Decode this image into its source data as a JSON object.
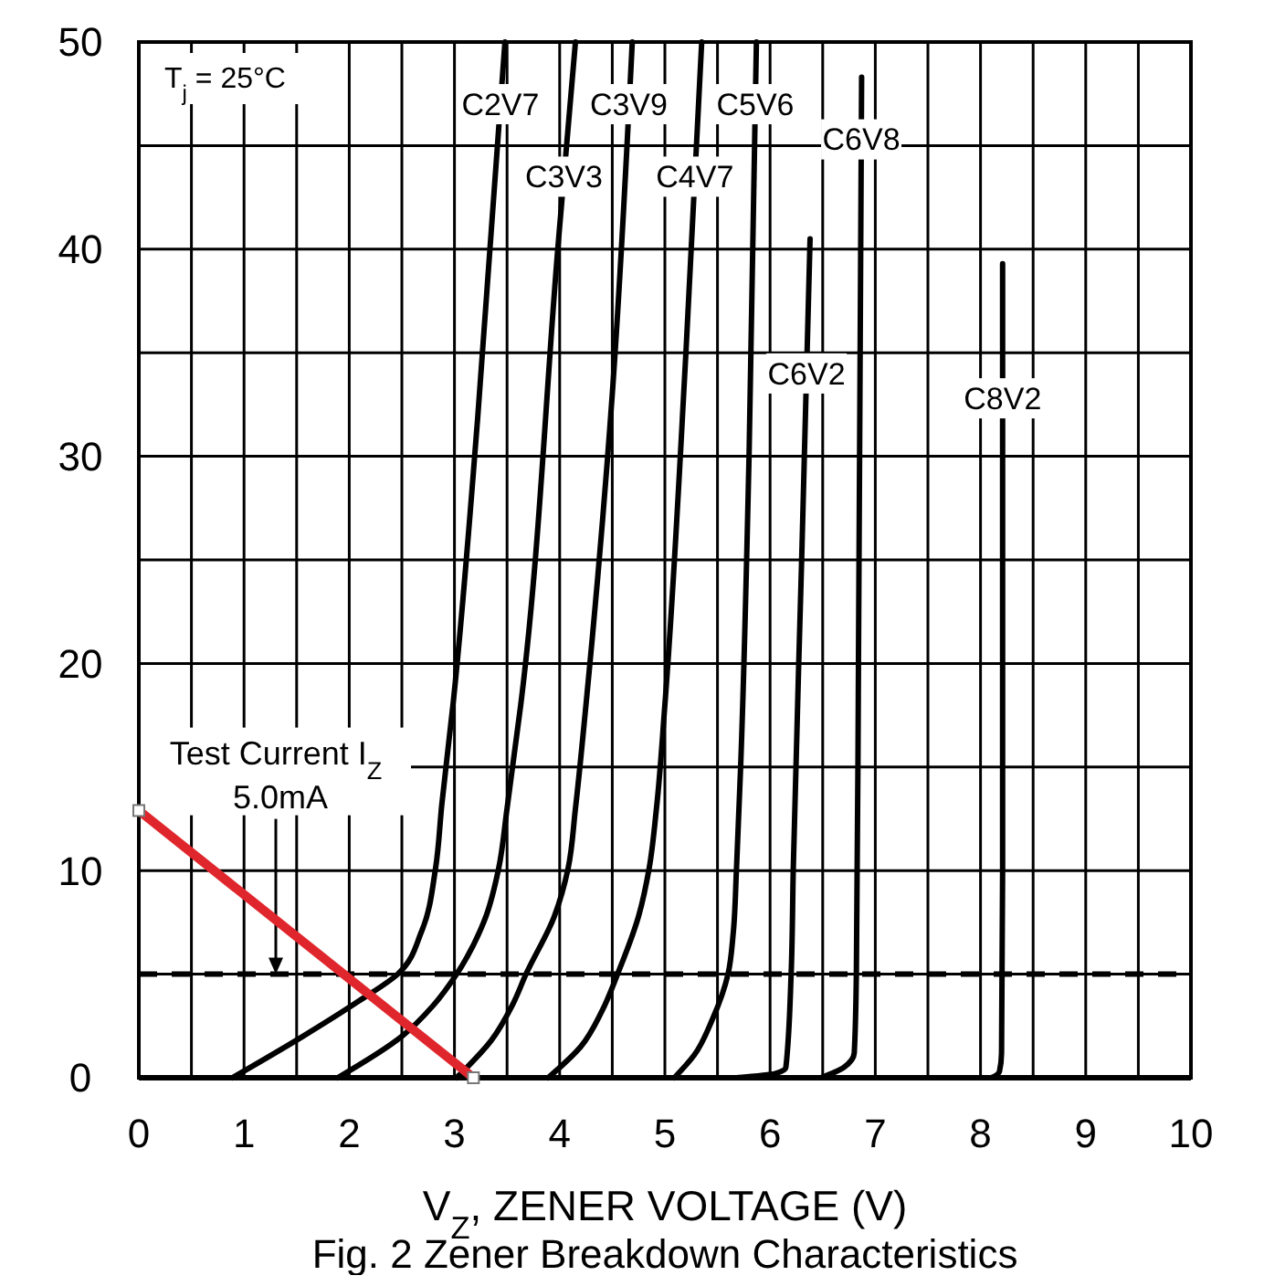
{
  "chart_data": {
    "type": "line",
    "title": "Fig. 2  Zener Breakdown Characteristics",
    "xlabel": "V$_{Z}$, ZENER VOLTAGE (V)",
    "xlim": [
      0,
      10
    ],
    "ylim": [
      0,
      50
    ],
    "xticks": [
      0,
      {
        "value": 0.5,
        "label": null
      },
      1,
      {
        "value": 1.5,
        "label": null
      },
      2,
      {
        "value": 2.5,
        "label": null
      },
      3,
      {
        "value": 3.5,
        "label": null
      },
      4,
      {
        "value": 4.5,
        "label": null
      },
      5,
      {
        "value": 5.5,
        "label": null
      },
      6,
      {
        "value": 6.5,
        "label": null
      },
      7,
      {
        "value": 7.5,
        "label": null
      },
      8,
      {
        "value": 8.5,
        "label": null
      },
      9,
      {
        "value": 9.5,
        "label": null
      },
      10
    ],
    "yticks": [
      0,
      {
        "value": 5,
        "label": null
      },
      10,
      {
        "value": 15,
        "label": null
      },
      20,
      {
        "value": 25,
        "label": null
      },
      30,
      {
        "value": 35,
        "label": null
      },
      40,
      {
        "value": 45,
        "label": null
      },
      50
    ],
    "grid": true,
    "legend": false,
    "series": [
      {
        "name": "C2V7",
        "color": "#000000",
        "x": [
          0.89,
          1.56,
          2.09,
          2.46,
          2.69,
          2.82,
          2.88,
          2.99,
          3.22,
          3.48
        ],
        "values": [
          0,
          2,
          3.7,
          5,
          7.1,
          10.1,
          13.2,
          18.2,
          31.8,
          50
        ]
      },
      {
        "name": "C3V3",
        "color": "#000000",
        "x": [
          1.89,
          2.5,
          2.8,
          3.02,
          3.3,
          3.42,
          3.5,
          3.63,
          3.99,
          4.15
        ],
        "values": [
          0,
          2,
          3.5,
          5,
          7.8,
          10.1,
          13,
          18,
          40.5,
          50
        ]
      },
      {
        "name": "C3V9",
        "color": "#000000",
        "x": [
          3.02,
          3.35,
          3.55,
          3.68,
          3.95,
          4.08,
          4.15,
          4.25,
          4.5,
          4.69
        ],
        "values": [
          0,
          1.8,
          3.5,
          5,
          7.8,
          10.1,
          13,
          18,
          33,
          50
        ]
      },
      {
        "name": "C4V7",
        "color": "#000000",
        "x": [
          3.89,
          4.2,
          4.4,
          4.55,
          4.75,
          4.85,
          4.92,
          5.0,
          5.2,
          5.35
        ],
        "values": [
          0,
          1.5,
          3.2,
          5,
          7.8,
          10.1,
          13,
          18,
          35,
          50
        ]
      },
      {
        "name": "C5V6",
        "color": "#000000",
        "x": [
          5.09,
          5.28,
          5.45,
          5.6,
          5.65,
          5.68,
          5.72,
          5.8,
          5.87
        ],
        "values": [
          0,
          1.1,
          2.8,
          5,
          7,
          10,
          15,
          30,
          50
        ]
      },
      {
        "name": "C6V2",
        "color": "#000000",
        "x": [
          5.68,
          6.05,
          6.15,
          6.2,
          6.22,
          6.3,
          6.38
        ],
        "values": [
          0,
          0.2,
          0.5,
          5,
          10,
          25,
          40.5
        ]
      },
      {
        "name": "C6V8",
        "color": "#000000",
        "x": [
          6.48,
          6.7,
          6.8,
          6.82,
          6.84,
          6.87
        ],
        "values": [
          0,
          0.5,
          1.2,
          5,
          20,
          48.3
        ]
      },
      {
        "name": "C8V2",
        "color": "#000000",
        "x": [
          7.8,
          8.1,
          8.18,
          8.2,
          8.21,
          8.21
        ],
        "values": [
          0,
          0,
          0.3,
          1.2,
          10,
          39.3
        ]
      },
      {
        "color": "#e0262d",
        "marker": "square",
        "x": [
          0,
          3.18
        ],
        "values": [
          12.9,
          0
        ]
      }
    ],
    "ref_lines": [
      {
        "axis": "y",
        "value": 5,
        "line_style": "dashed",
        "color": "#000000"
      }
    ],
    "annotations": [
      "T$_{j}$ = 25°C",
      "Test Current I$_{Z}$ 5.0mA"
    ]
  }
}
